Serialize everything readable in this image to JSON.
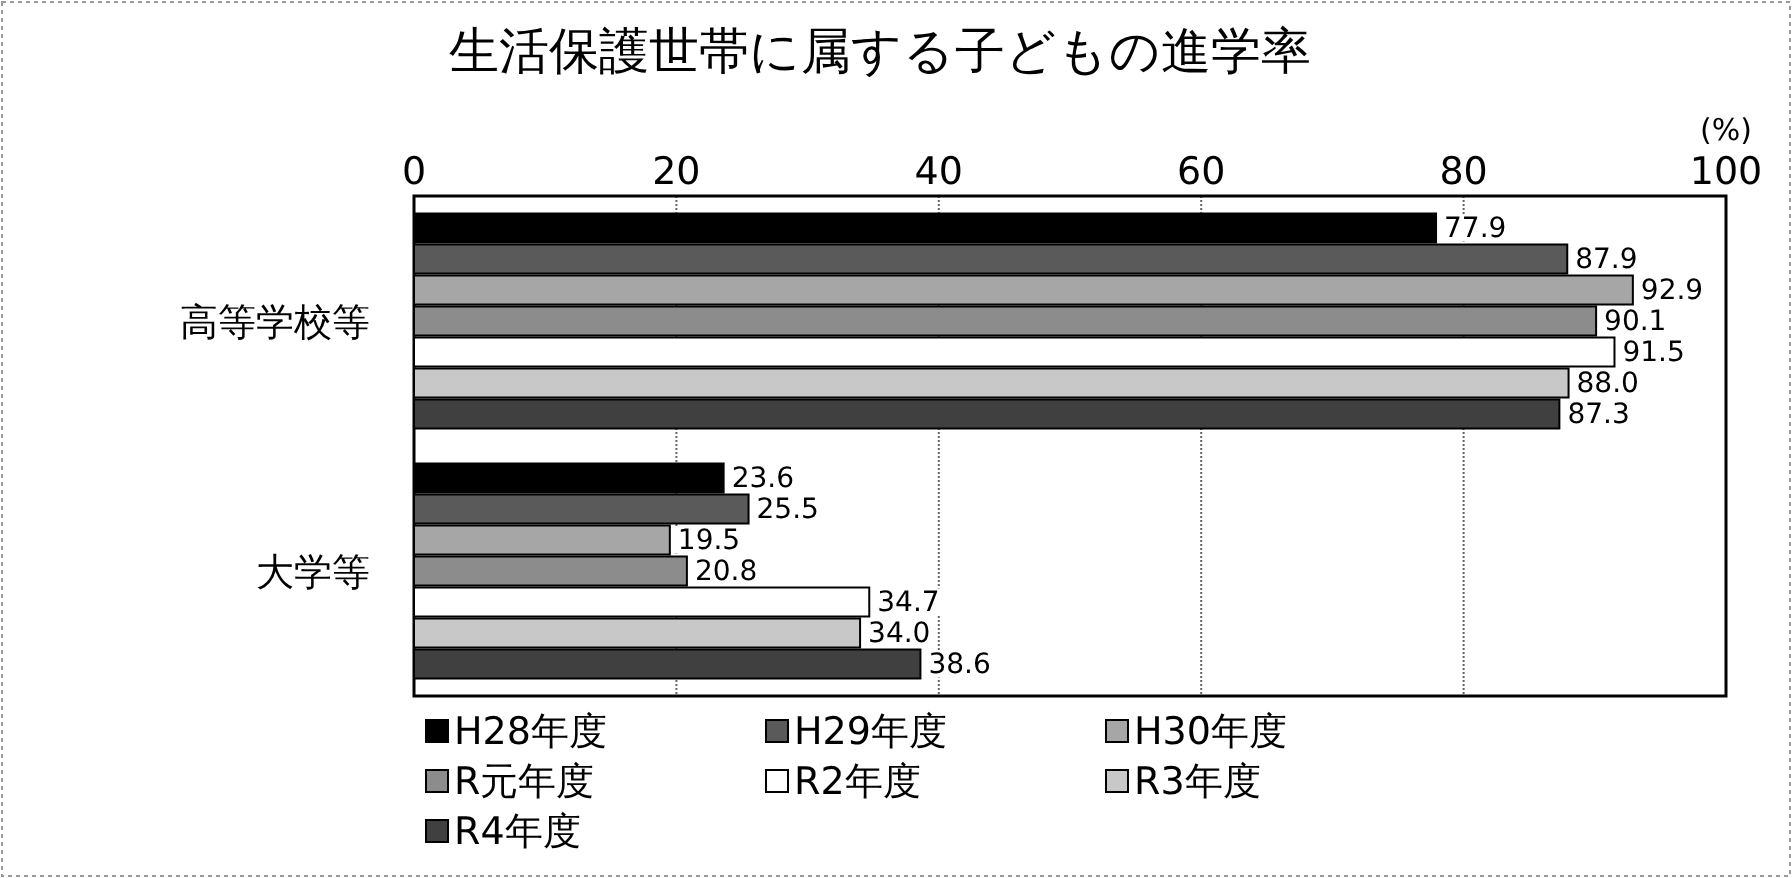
{
  "chart_data": {
    "type": "bar",
    "orientation": "horizontal",
    "title": "生活保護世帯に属する子どもの進学率",
    "xlabel": "(%)",
    "categories": [
      "高等学校等",
      "大学等"
    ],
    "xlim": [
      0,
      100
    ],
    "xticks": [
      0,
      20,
      40,
      60,
      80,
      100
    ],
    "grid": "x",
    "legend": "bottom",
    "series": [
      {
        "name": "H28年度",
        "color": "#000000",
        "values": [
          77.9,
          23.6
        ],
        "value_labels": [
          "77.9",
          "23.6"
        ]
      },
      {
        "name": "H29年度",
        "color": "#5a5a5a",
        "values": [
          87.9,
          25.5
        ],
        "value_labels": [
          "87.9",
          "25.5"
        ]
      },
      {
        "name": "H30年度",
        "color": "#a6a6a6",
        "values": [
          92.9,
          19.5
        ],
        "value_labels": [
          "92.9",
          "19.5"
        ]
      },
      {
        "name": "R元年度",
        "color": "#8c8c8c",
        "values": [
          90.1,
          20.8
        ],
        "value_labels": [
          "90.1",
          "20.8"
        ]
      },
      {
        "name": "R2年度",
        "color": "#ffffff",
        "values": [
          91.5,
          34.7
        ],
        "value_labels": [
          "91.5",
          "34.7"
        ]
      },
      {
        "name": "R3年度",
        "color": "#c8c8c8",
        "values": [
          88.0,
          34.0
        ],
        "value_labels": [
          "88.0",
          "34.0"
        ]
      },
      {
        "name": "R4年度",
        "color": "#404040",
        "values": [
          87.3,
          38.6
        ],
        "value_labels": [
          "87.3",
          "38.6"
        ]
      }
    ]
  }
}
